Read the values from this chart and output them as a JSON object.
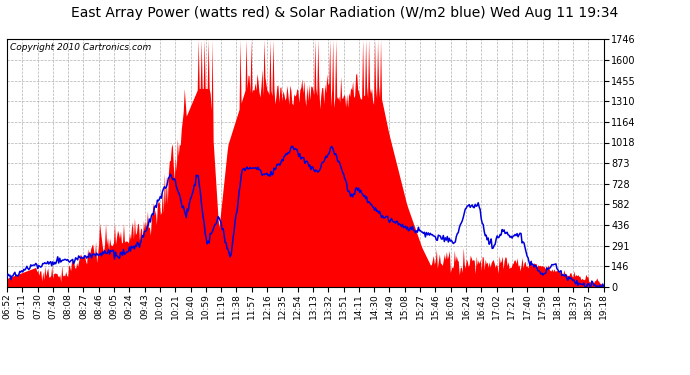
{
  "title": "East Array Power (watts red) & Solar Radiation (W/m2 blue) Wed Aug 11 19:34",
  "copyright_text": "Copyright 2010 Cartronics.com",
  "yticks": [
    0.0,
    145.5,
    291.0,
    436.5,
    582.0,
    727.5,
    873.0,
    1018.5,
    1164.0,
    1309.5,
    1455.0,
    1600.5,
    1746.0
  ],
  "ylim_min": 0.0,
  "ylim_max": 1746.0,
  "x_labels": [
    "06:52",
    "07:11",
    "07:30",
    "07:49",
    "08:08",
    "08:27",
    "08:46",
    "09:05",
    "09:24",
    "09:43",
    "10:02",
    "10:21",
    "10:40",
    "10:59",
    "11:19",
    "11:38",
    "11:57",
    "12:16",
    "12:35",
    "12:54",
    "13:13",
    "13:32",
    "13:51",
    "14:11",
    "14:30",
    "14:49",
    "15:08",
    "15:27",
    "15:46",
    "16:05",
    "16:24",
    "16:43",
    "17:02",
    "17:21",
    "17:40",
    "17:59",
    "18:18",
    "18:37",
    "18:57",
    "19:18"
  ],
  "background_color": "#ffffff",
  "red_fill_color": "#ff0000",
  "blue_line_color": "#0000dd",
  "grid_color": "#aaaaaa",
  "title_fontsize": 10,
  "copyright_fontsize": 6.5,
  "tick_fontsize": 6.5,
  "ytick_fontsize": 7
}
